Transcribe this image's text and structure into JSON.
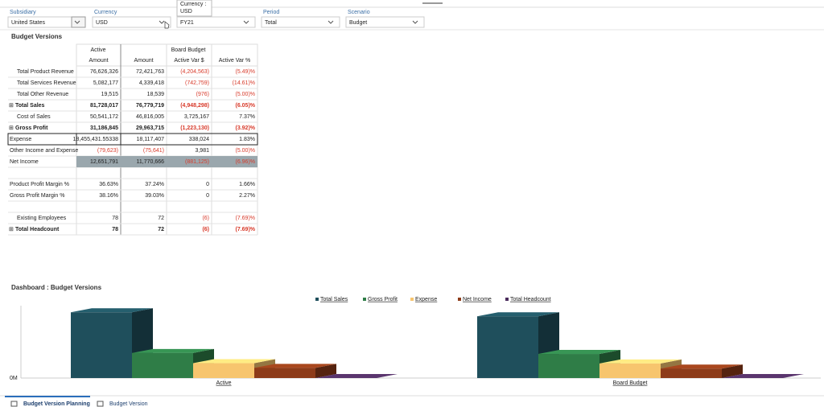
{
  "filters": [
    {
      "label": "Subsidiary",
      "value": "United States"
    },
    {
      "label": "Currency",
      "value": "USD"
    },
    {
      "label": null,
      "value": "FY21"
    },
    {
      "label": "Period",
      "value": "Total"
    },
    {
      "label": "Scenario",
      "value": "Budget"
    }
  ],
  "tooltip": {
    "title": "Currency :",
    "value": "USD"
  },
  "table": {
    "title": "Budget Versions",
    "header_top": [
      "Active",
      "Board Budget"
    ],
    "header": [
      "Amount",
      "Amount",
      "Active Var $",
      "Active Var %"
    ],
    "rows": [
      {
        "label": "Total Product Revenue",
        "indent": true,
        "cells": [
          "76,626,326",
          "72,421,763",
          "(4,204,563)",
          "(5.49)%"
        ]
      },
      {
        "label": "Total Services Revenue",
        "indent": true,
        "cells": [
          "5,082,177",
          "4,339,418",
          "(742,759)",
          "(14.61)%"
        ]
      },
      {
        "label": "Total Other Revenue",
        "indent": true,
        "cells": [
          "19,515",
          "18,539",
          "(976)",
          "(5.00)%"
        ]
      },
      {
        "label": "Total Sales",
        "bold": true,
        "expand": true,
        "cells": [
          "81,728,017",
          "76,779,719",
          "(4,948,298)",
          "(6.05)%"
        ]
      },
      {
        "label": "Cost of Sales",
        "indent": true,
        "cells": [
          "50,541,172",
          "46,816,005",
          "3,725,167",
          "7.37%"
        ]
      },
      {
        "label": "Gross Profit",
        "bold": true,
        "expand": true,
        "cells": [
          "31,186,845",
          "29,963,715",
          "(1,223,130)",
          "(3.92)%"
        ]
      },
      {
        "label": "Expense",
        "selected": true,
        "cells": [
          "18,455,431.55338",
          "18,117,407",
          "338,024",
          "1.83%"
        ]
      },
      {
        "label": "Other Income and Expense",
        "cells": [
          "(79,623)",
          "(75,641)",
          "3,981",
          "(5.00)%"
        ]
      },
      {
        "label": "Net Income",
        "highlight": true,
        "cells": [
          "12,651,791",
          "11,770,666",
          "(881,125)",
          "(6.96)%"
        ]
      },
      null,
      {
        "label": "Product Profit Margin %",
        "cells": [
          "36.63%",
          "37.24%",
          "0",
          "1.66%"
        ]
      },
      {
        "label": "Gross Profit Margin %",
        "cells": [
          "38.16%",
          "39.03%",
          "0",
          "2.27%"
        ]
      },
      null,
      {
        "label": "Existing Employees",
        "indent": true,
        "cells": [
          "78",
          "72",
          "(6)",
          "(7.69)%"
        ]
      },
      {
        "label": "Total Headcount",
        "bold": true,
        "expand": true,
        "cells": [
          "78",
          "72",
          "(6)",
          "(7.69)%"
        ]
      }
    ]
  },
  "chart_data": {
    "type": "bar3d",
    "title": "Dashboard : Budget Versions",
    "categories": [
      "Active",
      "Board Budget"
    ],
    "series": [
      {
        "name": "Total Sales",
        "color": "#1f4f5c",
        "values": [
          81.728017,
          76.779719
        ]
      },
      {
        "name": "Gross Profit",
        "color": "#2f7d47",
        "values": [
          31.186845,
          29.963715
        ]
      },
      {
        "name": "Expense",
        "color": "#f7c56e",
        "values": [
          18.455432,
          18.117407
        ]
      },
      {
        "name": "Net Income",
        "color": "#8d3b19",
        "values": [
          12.651791,
          11.770666
        ]
      },
      {
        "name": "Total Headcount",
        "color": "#4b2c5c",
        "values": [
          7.8e-05,
          7.2e-05
        ]
      }
    ],
    "ylim": [
      0,
      90
    ],
    "yticks": [
      {
        "value": 0,
        "label": "0M"
      }
    ]
  },
  "tabs": [
    "Budget Version Planning",
    "Budget Version"
  ]
}
